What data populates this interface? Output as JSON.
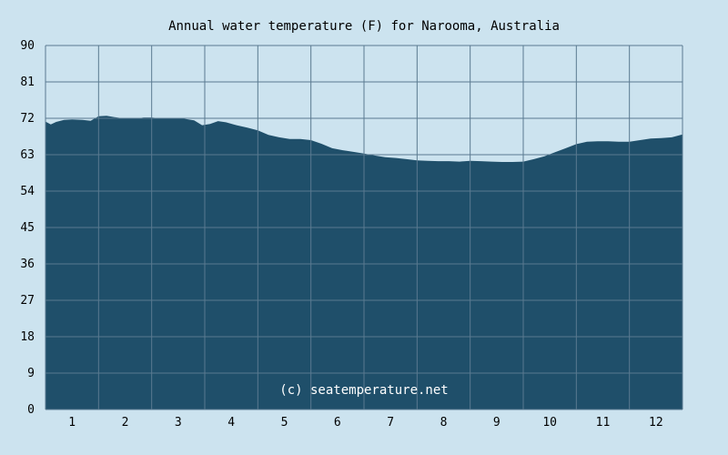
{
  "chart_data": {
    "type": "area",
    "title": "Annual water temperature (F) for Narooma, Australia",
    "xlabel": "",
    "ylabel": "",
    "ylim": [
      0,
      90
    ],
    "yticks": [
      0,
      9,
      18,
      27,
      36,
      45,
      54,
      63,
      72,
      81,
      90
    ],
    "ytick_labels": [
      "0",
      "9",
      "18",
      "27",
      "36",
      "45",
      "54",
      "63",
      "72",
      "81",
      "90"
    ],
    "xlim": [
      0.5,
      12.5
    ],
    "xticks": [
      1,
      2,
      3,
      4,
      5,
      6,
      7,
      8,
      9,
      10,
      11,
      12
    ],
    "xtick_labels": [
      "1",
      "2",
      "3",
      "4",
      "5",
      "6",
      "7",
      "8",
      "9",
      "10",
      "11",
      "12"
    ],
    "grid": true,
    "annotation": "(c) seatemperature.net",
    "series": [
      {
        "x": [
          0.5,
          0.6,
          0.7,
          0.85,
          1.0,
          1.2,
          1.35,
          1.5,
          1.65,
          1.8,
          2.0,
          2.2,
          2.35,
          2.5,
          2.7,
          2.9,
          3.1,
          3.3,
          3.45,
          3.6,
          3.75,
          3.9,
          4.1,
          4.3,
          4.5,
          4.7,
          4.9,
          5.1,
          5.3,
          5.5,
          5.7,
          5.9,
          6.1,
          6.3,
          6.5,
          6.7,
          6.9,
          7.1,
          7.3,
          7.5,
          7.7,
          7.9,
          8.1,
          8.3,
          8.5,
          8.7,
          8.9,
          9.1,
          9.3,
          9.5,
          9.7,
          9.9,
          10.1,
          10.3,
          10.5,
          10.7,
          10.9,
          11.1,
          11.3,
          11.5,
          11.7,
          11.9,
          12.1,
          12.3,
          12.5
        ],
        "values": [
          71.2,
          70.5,
          71.1,
          71.6,
          71.7,
          71.6,
          71.4,
          72.5,
          72.6,
          72.3,
          71.9,
          71.9,
          72.2,
          72.2,
          71.9,
          71.9,
          71.9,
          71.5,
          70.3,
          70.6,
          71.3,
          71.0,
          70.3,
          69.7,
          69.0,
          67.9,
          67.3,
          66.9,
          66.9,
          66.6,
          65.7,
          64.6,
          64.1,
          63.7,
          63.3,
          62.8,
          62.4,
          62.2,
          61.9,
          61.6,
          61.5,
          61.4,
          61.4,
          61.3,
          61.5,
          61.4,
          61.3,
          61.2,
          61.2,
          61.3,
          61.9,
          62.6,
          63.6,
          64.6,
          65.6,
          66.2,
          66.3,
          66.3,
          66.2,
          66.2,
          66.6,
          67.0,
          67.1,
          67.3,
          68.0
        ]
      }
    ],
    "colors": {
      "background": "#cce3ef",
      "area_fill": "#1f4f6a",
      "grid": "#5a7a90",
      "annotation": "#ffffff"
    }
  }
}
